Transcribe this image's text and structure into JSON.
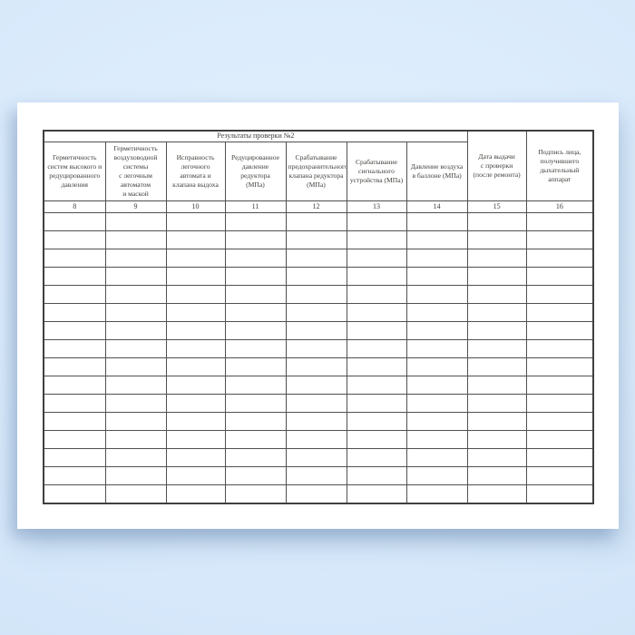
{
  "background": {
    "top_color": "#e4f1fd",
    "bottom_color": "#cde1f6"
  },
  "page": {
    "bg_color": "#ffffff"
  },
  "table": {
    "group_header": "Результаты проверки №2",
    "columns": [
      {
        "num": "8",
        "label": "Герметичность\nсистем высокого и\nредуцированного\nдавления"
      },
      {
        "num": "9",
        "label": "Герметичность\nвоздуховодной\nсистемы\nс легочным\nавтоматом\nи маской"
      },
      {
        "num": "10",
        "label": "Исправность\nлегочного\nавтомата и\nклапана выдоха"
      },
      {
        "num": "11",
        "label": "Редуцированное\nдавление\nредуктора\n(МПа)"
      },
      {
        "num": "12",
        "label": "Срабатывание\nпредохранительного\nклапана редуктора\n(МПа)"
      },
      {
        "num": "13",
        "label": "Срабатывание\nсигнального\nустройства (МПа)"
      },
      {
        "num": "14",
        "label": "Давление воздуха\nв баллоне (МПа)"
      },
      {
        "num": "15",
        "label": "Дата выдачи\nс проверки\n(после ремонта)"
      },
      {
        "num": "16",
        "label": "Подпись лица,\nполучившего\nдыхательный\nаппарат"
      }
    ],
    "empty_row_count": 16,
    "border_color": "#505050",
    "text_color": "#40403c"
  }
}
